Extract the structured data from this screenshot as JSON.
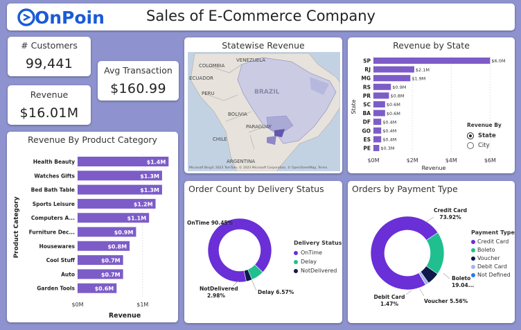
{
  "header": {
    "logo": "OnPoint",
    "title": "Sales of E-Commerce Company"
  },
  "kpis": {
    "customers": {
      "label": "# Customers",
      "value": "99,441"
    },
    "revenue": {
      "label": "Revenue",
      "value": "$16.01M"
    },
    "avg_transaction": {
      "label": "Avg Transaction",
      "value": "$160.99"
    }
  },
  "map": {
    "title": "Statewise Revenue",
    "labels": [
      "VENEZUELA",
      "COLOMBIA",
      "ECUADOR",
      "PERU",
      "BRAZIL",
      "BOLIVIA",
      "PARAGUAY",
      "CHILE",
      "ARGENTINA"
    ],
    "credit": "© 2023 TomTom, © 2023 Microsoft Corporation, © OpenStreetMap, Terms",
    "ms_logo": "Microsoft Bing"
  },
  "payment_legend": {
    "title": "Payment Type",
    "items": [
      "Credit Card",
      "Boleto",
      "Voucher",
      "Debit Card",
      "Not Defined"
    ]
  },
  "delivery_legend": {
    "title": "Delivery Status",
    "items": [
      "OnTime",
      "Delay",
      "NotDelivered"
    ]
  },
  "state_toggle": {
    "title": "Revenue By",
    "options": [
      {
        "label": "State",
        "selected": true
      },
      {
        "label": "City",
        "selected": false
      }
    ]
  },
  "chart_data": [
    {
      "id": "category",
      "type": "bar",
      "orientation": "horizontal",
      "title": "Revenue By Product Category",
      "xlabel": "Revenue",
      "ylabel": "Product Category",
      "categories": [
        "Health Beauty",
        "Watches Gifts",
        "Bed Bath Table",
        "Sports Leisure",
        "Computers A...",
        "Furniture Dec...",
        "Housewares",
        "Cool Stuff",
        "Auto",
        "Garden Tools"
      ],
      "values": [
        1.4,
        1.3,
        1.3,
        1.2,
        1.1,
        0.9,
        0.8,
        0.7,
        0.7,
        0.6
      ],
      "value_labels": [
        "$1.4M",
        "$1.3M",
        "$1.3M",
        "$1.2M",
        "$1.1M",
        "$0.9M",
        "$0.8M",
        "$0.7M",
        "$0.7M",
        "$0.6M"
      ],
      "xticks": [
        "$0M",
        "$1M"
      ],
      "xtick_values": [
        0,
        1
      ],
      "xlim": [
        0,
        1.45
      ],
      "color": "#7d5cc8"
    },
    {
      "id": "state",
      "type": "bar",
      "orientation": "horizontal",
      "title": "Revenue by State",
      "xlabel": "Revenue",
      "ylabel": "State",
      "categories": [
        "SP",
        "RJ",
        "MG",
        "RS",
        "PR",
        "SC",
        "BA",
        "DF",
        "GO",
        "ES",
        "PE"
      ],
      "values": [
        6.0,
        2.1,
        1.9,
        0.9,
        0.8,
        0.6,
        0.6,
        0.4,
        0.4,
        0.4,
        0.3
      ],
      "value_labels": [
        "$6.0M",
        "$2.1M",
        "$1.9M",
        "$0.9M",
        "$0.8M",
        "$0.6M",
        "$0.6M",
        "$0.4M",
        "$0.4M",
        "$0.4M",
        "$0.3M"
      ],
      "xticks": [
        "$0M",
        "$2M",
        "$4M",
        "$6M"
      ],
      "xtick_values": [
        0,
        2,
        4,
        6
      ],
      "xlim": [
        0,
        6.2
      ],
      "color": "#7d5cc8"
    },
    {
      "id": "delivery",
      "type": "pie",
      "donut": true,
      "title": "Order Count by Delivery Status",
      "labels": [
        "OnTime",
        "Delay",
        "NotDelivered"
      ],
      "values": [
        90.45,
        6.57,
        2.98
      ],
      "slice_labels": [
        "OnTime 90.45%",
        "Delay 6.57%",
        "NotDelivered 2.98%"
      ],
      "colors": [
        "#6a2fd6",
        "#1fbf8f",
        "#0f1a4a"
      ]
    },
    {
      "id": "payment",
      "type": "pie",
      "donut": true,
      "title": "Orders by Payment Type",
      "labels": [
        "Credit Card",
        "Boleto",
        "Voucher",
        "Debit Card",
        "Not Defined"
      ],
      "values": [
        73.92,
        19.04,
        5.56,
        1.47,
        0.01
      ],
      "slice_labels": [
        "Credit Card 73.92%",
        "Boleto 19.04...",
        "Voucher 5.56%",
        "Debit Card 1.47%",
        ""
      ],
      "colors": [
        "#6a2fd6",
        "#1fbf8f",
        "#0f1a4a",
        "#a5b4e8",
        "#2a7be4"
      ]
    }
  ]
}
